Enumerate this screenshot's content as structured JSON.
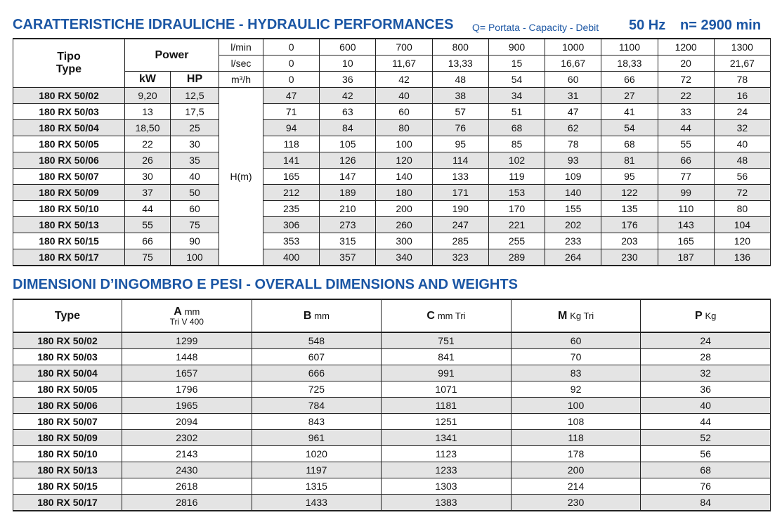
{
  "hydraulic": {
    "title": "CARATTERISTICHE IDRAULICHE - HYDRAULIC PERFORMANCES",
    "note": "Q= Portata - Capacity - Debit",
    "freq": "50 Hz",
    "speed": "n= 2900 min",
    "header": {
      "tipo": "Tipo",
      "type": "Type",
      "power": "Power",
      "kw": "kW",
      "hp": "HP",
      "head": "H(m)"
    },
    "flow_units": [
      "l/min",
      "l/sec",
      "m³/h"
    ],
    "flow_rows": [
      [
        "0",
        "600",
        "700",
        "800",
        "900",
        "1000",
        "1100",
        "1200",
        "1300"
      ],
      [
        "0",
        "10",
        "11,67",
        "13,33",
        "15",
        "16,67",
        "18,33",
        "20",
        "21,67"
      ],
      [
        "0",
        "36",
        "42",
        "48",
        "54",
        "60",
        "66",
        "72",
        "78"
      ]
    ],
    "rows": [
      {
        "model": "180 RX 50/02",
        "kw": "9,20",
        "hp": "12,5",
        "heads": [
          "47",
          "42",
          "40",
          "38",
          "34",
          "31",
          "27",
          "22",
          "16"
        ]
      },
      {
        "model": "180 RX 50/03",
        "kw": "13",
        "hp": "17,5",
        "heads": [
          "71",
          "63",
          "60",
          "57",
          "51",
          "47",
          "41",
          "33",
          "24"
        ]
      },
      {
        "model": "180 RX 50/04",
        "kw": "18,50",
        "hp": "25",
        "heads": [
          "94",
          "84",
          "80",
          "76",
          "68",
          "62",
          "54",
          "44",
          "32"
        ]
      },
      {
        "model": "180 RX 50/05",
        "kw": "22",
        "hp": "30",
        "heads": [
          "118",
          "105",
          "100",
          "95",
          "85",
          "78",
          "68",
          "55",
          "40"
        ]
      },
      {
        "model": "180 RX 50/06",
        "kw": "26",
        "hp": "35",
        "heads": [
          "141",
          "126",
          "120",
          "114",
          "102",
          "93",
          "81",
          "66",
          "48"
        ]
      },
      {
        "model": "180 RX 50/07",
        "kw": "30",
        "hp": "40",
        "heads": [
          "165",
          "147",
          "140",
          "133",
          "119",
          "109",
          "95",
          "77",
          "56"
        ]
      },
      {
        "model": "180 RX 50/09",
        "kw": "37",
        "hp": "50",
        "heads": [
          "212",
          "189",
          "180",
          "171",
          "153",
          "140",
          "122",
          "99",
          "72"
        ]
      },
      {
        "model": "180 RX 50/10",
        "kw": "44",
        "hp": "60",
        "heads": [
          "235",
          "210",
          "200",
          "190",
          "170",
          "155",
          "135",
          "110",
          "80"
        ]
      },
      {
        "model": "180 RX 50/13",
        "kw": "55",
        "hp": "75",
        "heads": [
          "306",
          "273",
          "260",
          "247",
          "221",
          "202",
          "176",
          "143",
          "104"
        ]
      },
      {
        "model": "180 RX 50/15",
        "kw": "66",
        "hp": "90",
        "heads": [
          "353",
          "315",
          "300",
          "285",
          "255",
          "233",
          "203",
          "165",
          "120"
        ]
      },
      {
        "model": "180 RX 50/17",
        "kw": "75",
        "hp": "100",
        "heads": [
          "400",
          "357",
          "340",
          "323",
          "289",
          "264",
          "230",
          "187",
          "136"
        ]
      }
    ]
  },
  "dimensions": {
    "title": "DIMENSIONI D’INGOMBRO E PESI - OVERALL DIMENSIONS AND WEIGHTS",
    "header": {
      "type": "Type",
      "columns": [
        {
          "letter": "A",
          "unit": "mm",
          "sub": "Tri V 400"
        },
        {
          "letter": "B",
          "unit": "mm"
        },
        {
          "letter": "C",
          "unit": "mm Tri"
        },
        {
          "letter": "M",
          "unit": "Kg Tri"
        },
        {
          "letter": "P",
          "unit": "Kg"
        }
      ]
    },
    "rows": [
      [
        "180 RX 50/02",
        "1299",
        "548",
        "751",
        "60",
        "24"
      ],
      [
        "180 RX 50/03",
        "1448",
        "607",
        "841",
        "70",
        "28"
      ],
      [
        "180 RX 50/04",
        "1657",
        "666",
        "991",
        "83",
        "32"
      ],
      [
        "180 RX 50/05",
        "1796",
        "725",
        "1071",
        "92",
        "36"
      ],
      [
        "180 RX 50/06",
        "1965",
        "784",
        "1181",
        "100",
        "40"
      ],
      [
        "180 RX 50/07",
        "2094",
        "843",
        "1251",
        "108",
        "44"
      ],
      [
        "180 RX 50/09",
        "2302",
        "961",
        "1341",
        "118",
        "52"
      ],
      [
        "180 RX 50/10",
        "2143",
        "1020",
        "1123",
        "178",
        "56"
      ],
      [
        "180 RX 50/13",
        "2430",
        "1197",
        "1233",
        "200",
        "68"
      ],
      [
        "180 RX 50/15",
        "2618",
        "1315",
        "1303",
        "214",
        "76"
      ],
      [
        "180 RX 50/17",
        "2816",
        "1433",
        "1383",
        "230",
        "84"
      ]
    ]
  }
}
